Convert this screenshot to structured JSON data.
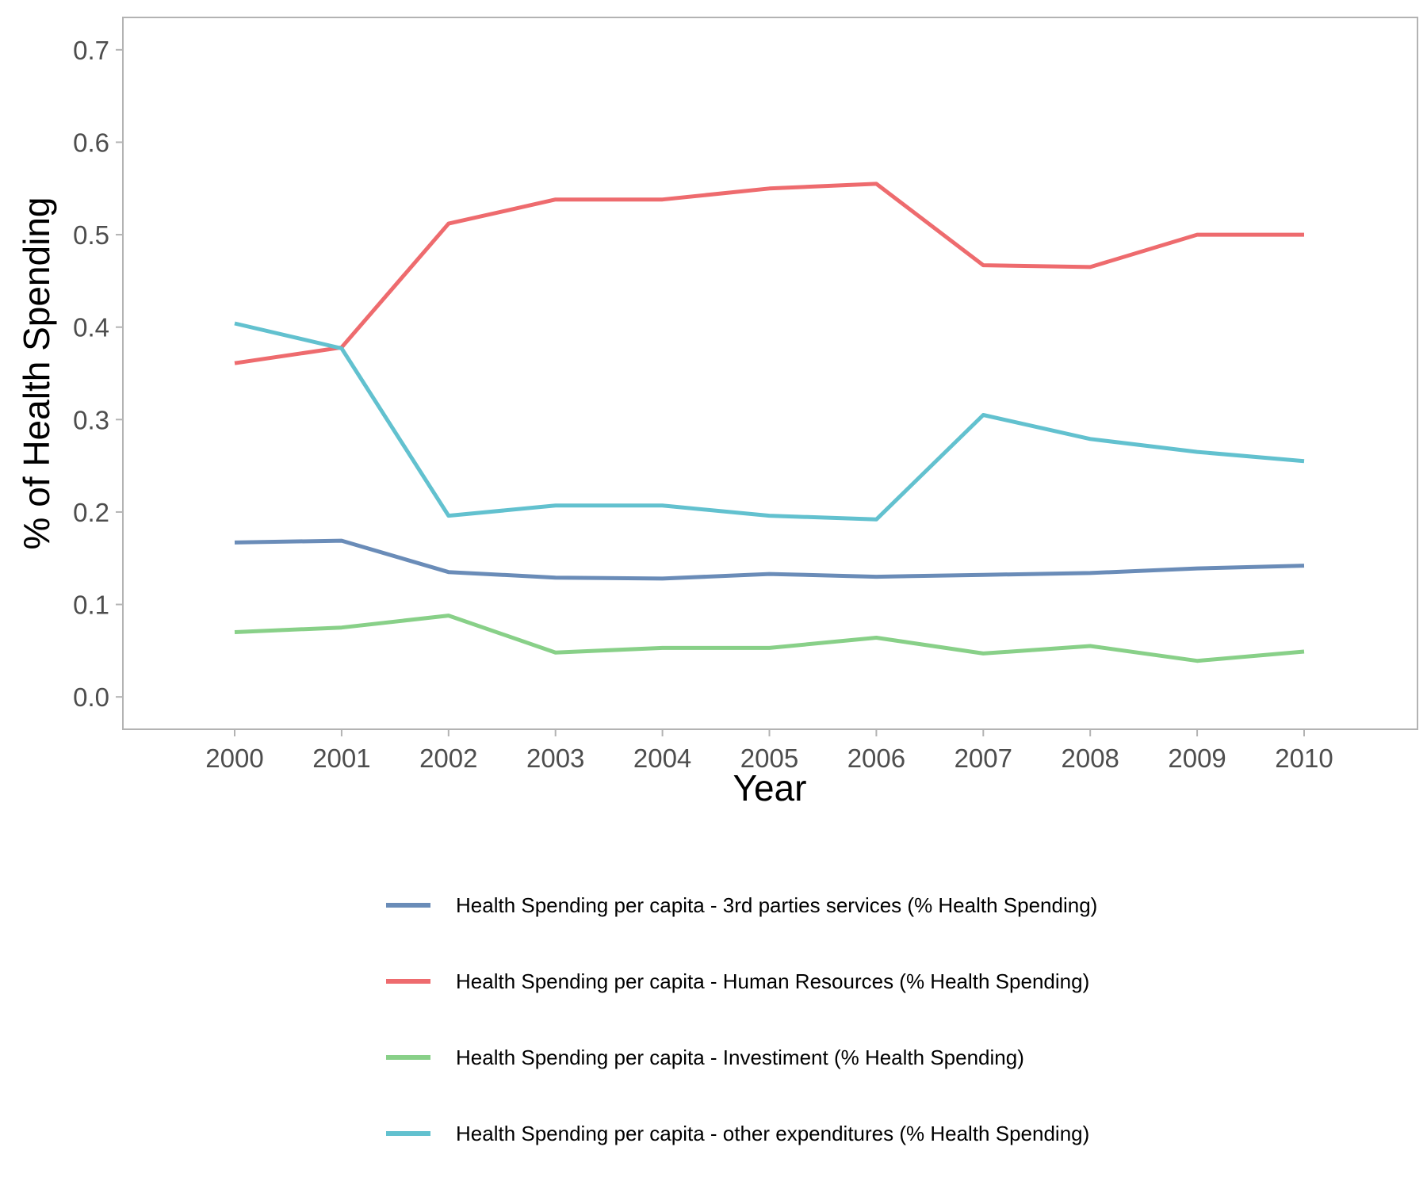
{
  "chart_data": {
    "type": "line",
    "title": "",
    "xlabel": "Year",
    "ylabel": "% of Health Spending",
    "x": [
      "2000",
      "2001",
      "2002",
      "2003",
      "2004",
      "2005",
      "2006",
      "2007",
      "2008",
      "2009",
      "2010"
    ],
    "ylim": [
      -0.035,
      0.735
    ],
    "yticks": [
      "0.0",
      "0.1",
      "0.2",
      "0.3",
      "0.4",
      "0.5",
      "0.6",
      "0.7"
    ],
    "grid": false,
    "legend_position": "bottom",
    "series": [
      {
        "name": "Health Spending per capita - 3rd parties services (% Health Spending)",
        "color": "#6a8cb8",
        "values": [
          0.167,
          0.169,
          0.135,
          0.129,
          0.128,
          0.133,
          0.13,
          0.132,
          0.134,
          0.139,
          0.142
        ]
      },
      {
        "name": "Health Spending per capita - Human Resources (% Health Spending)",
        "color": "#ee6b6e",
        "values": [
          0.361,
          0.378,
          0.512,
          0.538,
          0.538,
          0.55,
          0.555,
          0.467,
          0.465,
          0.5,
          0.5
        ]
      },
      {
        "name": "Health Spending per capita - Investiment (% Health Spending)",
        "color": "#88d088",
        "values": [
          0.07,
          0.075,
          0.088,
          0.048,
          0.053,
          0.053,
          0.064,
          0.047,
          0.055,
          0.039,
          0.049
        ]
      },
      {
        "name": "Health Spending per capita - other expenditures (% Health Spending)",
        "color": "#62c1cf",
        "values": [
          0.404,
          0.377,
          0.196,
          0.207,
          0.207,
          0.196,
          0.192,
          0.305,
          0.279,
          0.265,
          0.255
        ]
      }
    ]
  }
}
